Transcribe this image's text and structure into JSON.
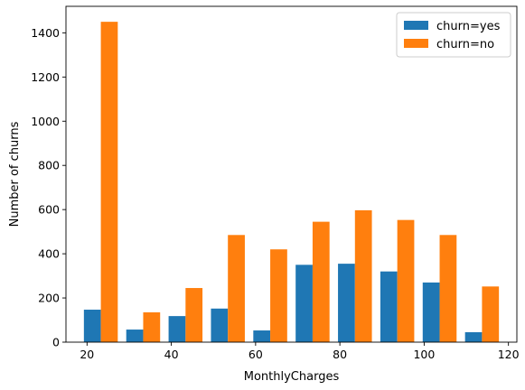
{
  "chart_data": {
    "type": "bar",
    "xlabel": "MonthlyCharges",
    "ylabel": "Number of churns",
    "xlim": [
      15,
      122
    ],
    "ylim": [
      0,
      1520
    ],
    "legend_position": "top-right",
    "grid": false,
    "x_ticks": [
      20,
      40,
      60,
      80,
      100,
      120
    ],
    "y_ticks": [
      0,
      200,
      400,
      600,
      800,
      1000,
      1200,
      1400
    ],
    "bin_edges": [
      18.25,
      28.3,
      38.35,
      48.4,
      58.45,
      68.5,
      78.55,
      88.6,
      98.65,
      108.7,
      118.75
    ],
    "series": [
      {
        "name": "churn=yes",
        "color": "#1f77b4",
        "values": [
          147,
          57,
          118,
          152,
          53,
          350,
          355,
          320,
          270,
          45
        ]
      },
      {
        "name": "churn=no",
        "color": "#ff7f0e",
        "values": [
          1450,
          135,
          245,
          485,
          420,
          545,
          597,
          553,
          485,
          252
        ]
      }
    ]
  }
}
